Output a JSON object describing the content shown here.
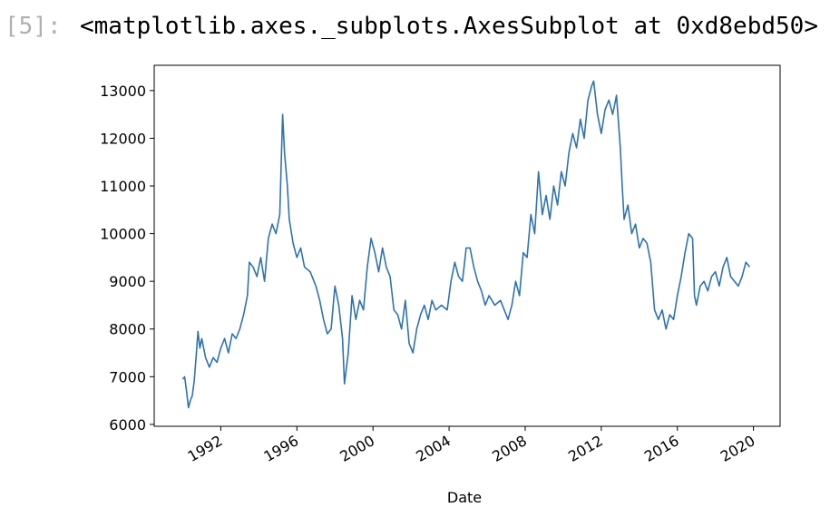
{
  "cell": {
    "prompt": "[5]:",
    "output": "<matplotlib.axes._subplots.AxesSubplot at 0xd8ebd50>"
  },
  "chart_data": {
    "type": "line",
    "xlabel": "Date",
    "grid": false,
    "xlim": [
      1988.5,
      2021.4
    ],
    "xticks": [
      1992,
      1996,
      2000,
      2004,
      2008,
      2012,
      2016,
      2020
    ],
    "ylim": [
      5960,
      13530
    ],
    "yticks": [
      6000,
      7000,
      8000,
      9000,
      10000,
      11000,
      12000,
      13000
    ],
    "series": [
      {
        "color": "#2f72b0",
        "x": [
          1990.0,
          1990.1,
          1990.2,
          1990.3,
          1990.4,
          1990.5,
          1990.6,
          1990.7,
          1990.8,
          1990.9,
          1991.0,
          1991.2,
          1991.4,
          1991.6,
          1991.8,
          1992.0,
          1992.2,
          1992.4,
          1992.6,
          1992.8,
          1993.0,
          1993.2,
          1993.4,
          1993.5,
          1993.7,
          1993.9,
          1994.1,
          1994.3,
          1994.5,
          1994.7,
          1994.9,
          1995.1,
          1995.25,
          1995.35,
          1995.5,
          1995.6,
          1995.8,
          1996.0,
          1996.2,
          1996.4,
          1996.7,
          1997.0,
          1997.2,
          1997.4,
          1997.6,
          1997.8,
          1998.0,
          1998.2,
          1998.4,
          1998.5,
          1998.7,
          1998.9,
          1999.1,
          1999.3,
          1999.5,
          1999.7,
          1999.9,
          2000.1,
          2000.3,
          2000.5,
          2000.7,
          2000.9,
          2001.1,
          2001.3,
          2001.5,
          2001.7,
          2001.9,
          2002.1,
          2002.3,
          2002.5,
          2002.7,
          2002.9,
          2003.1,
          2003.3,
          2003.6,
          2003.9,
          2004.1,
          2004.3,
          2004.5,
          2004.7,
          2004.9,
          2005.1,
          2005.3,
          2005.5,
          2005.7,
          2005.9,
          2006.1,
          2006.4,
          2006.7,
          2006.9,
          2007.1,
          2007.3,
          2007.5,
          2007.7,
          2007.9,
          2008.1,
          2008.3,
          2008.5,
          2008.7,
          2008.9,
          2009.1,
          2009.3,
          2009.5,
          2009.7,
          2009.9,
          2010.1,
          2010.3,
          2010.5,
          2010.7,
          2010.9,
          2011.1,
          2011.3,
          2011.5,
          2011.6,
          2011.8,
          2012.0,
          2012.2,
          2012.4,
          2012.6,
          2012.8,
          2013.0,
          2013.1,
          2013.2,
          2013.4,
          2013.6,
          2013.8,
          2014.0,
          2014.2,
          2014.4,
          2014.6,
          2014.8,
          2015.0,
          2015.2,
          2015.4,
          2015.6,
          2015.8,
          2016.0,
          2016.2,
          2016.4,
          2016.6,
          2016.8,
          2016.9,
          2017.0,
          2017.2,
          2017.4,
          2017.6,
          2017.8,
          2018.0,
          2018.2,
          2018.4,
          2018.6,
          2018.8,
          2019.0,
          2019.2,
          2019.4,
          2019.6,
          2019.8
        ],
        "values": [
          6950,
          7000,
          6700,
          6350,
          6500,
          6600,
          6900,
          7400,
          7950,
          7600,
          7800,
          7400,
          7200,
          7400,
          7300,
          7600,
          7800,
          7500,
          7900,
          7800,
          8000,
          8300,
          8700,
          9400,
          9300,
          9100,
          9500,
          9000,
          9900,
          10200,
          10000,
          10400,
          12500,
          11700,
          11000,
          10300,
          9800,
          9500,
          9700,
          9300,
          9200,
          8900,
          8600,
          8200,
          7900,
          8000,
          8900,
          8500,
          7800,
          6850,
          7500,
          8700,
          8200,
          8600,
          8400,
          9300,
          9900,
          9600,
          9200,
          9700,
          9300,
          9100,
          8400,
          8300,
          8000,
          8600,
          7700,
          7500,
          8000,
          8300,
          8500,
          8200,
          8600,
          8400,
          8500,
          8400,
          9000,
          9400,
          9100,
          9000,
          9700,
          9700,
          9300,
          9000,
          8800,
          8500,
          8700,
          8500,
          8600,
          8400,
          8200,
          8500,
          9000,
          8700,
          9600,
          9500,
          10400,
          10000,
          11300,
          10400,
          10800,
          10300,
          11000,
          10600,
          11300,
          11000,
          11700,
          12100,
          11800,
          12400,
          12000,
          12800,
          13100,
          13200,
          12500,
          12100,
          12600,
          12800,
          12500,
          12900,
          11800,
          11000,
          10300,
          10600,
          10000,
          10200,
          9700,
          9900,
          9800,
          9400,
          8400,
          8200,
          8400,
          8000,
          8300,
          8200,
          8700,
          9100,
          9600,
          10000,
          9900,
          8700,
          8500,
          8900,
          9000,
          8800,
          9100,
          9200,
          8900,
          9300,
          9500,
          9100,
          9000,
          8900,
          9100,
          9400,
          9300
        ]
      }
    ]
  }
}
